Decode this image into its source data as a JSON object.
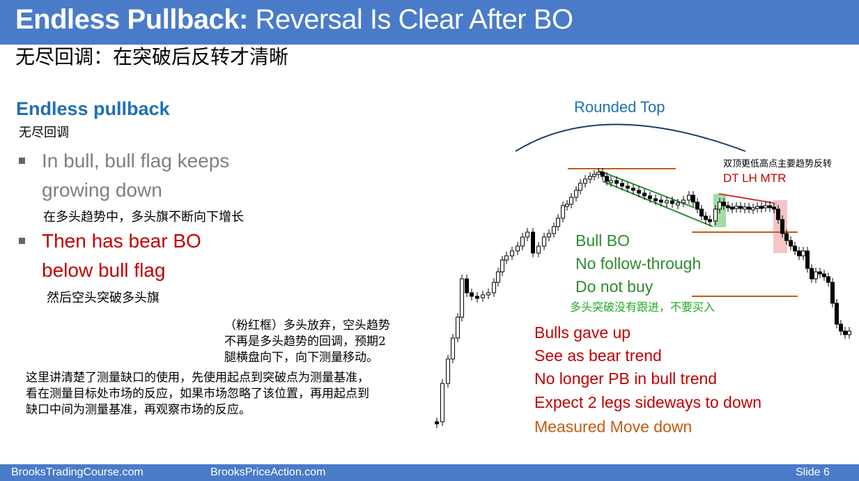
{
  "title": {
    "bold": "Endless Pullback:",
    "rest": " Reversal Is Clear After BO",
    "zh": "无尽回调：在突破后反转才清晰"
  },
  "left": {
    "heading": "Endless pullback",
    "heading_zh": "无尽回调",
    "bullet1_line1": "In bull, bull flag keeps",
    "bullet1_line2": "growing down",
    "bullet1_zh": "在多头趋势中，多头旗不断向下增长",
    "bullet2_line1": "Then has bear BO",
    "bullet2_line2": "below bull flag",
    "bullet2_zh": "然后空头突破多头旗"
  },
  "notes": {
    "pink_line1": "（粉红框）多头放弃，空头趋势",
    "pink_line2": "不再是多头趋势的回调，预期2",
    "pink_line3": "腿横盘向下，向下测量移动。",
    "mm_line1": "这里讲清楚了测量缺口的使用，先使用起点到突破点为测量基准，",
    "mm_line2": "看在测量目标处市场的反应，如果市场忽略了该位置，再用起点到",
    "mm_line3": "缺口中间为测量基准，再观察市场的反应。"
  },
  "chart_labels": {
    "rounded_top": "Rounded Top",
    "dt_zh": "双顶更低高点主要趋势反转",
    "dt": "DT LH MTR",
    "bull_bo": "Bull BO",
    "no_follow": "No follow-through",
    "do_not_buy": "Do not buy",
    "bull_zh": "多头突破没有跟进，不要买入",
    "bulls_gave_up": "Bulls gave up",
    "see_bear": "See as bear trend",
    "no_longer": "No longer PB in bull trend",
    "expect": "Expect 2 legs sideways to down",
    "measured": "Measured Move down"
  },
  "colors": {
    "title_bar": "#4a7bc8",
    "heading_blue": "#1f6fb4",
    "bear_red": "#c00000",
    "green_text": "#2e8b2e",
    "orange_line": "#c55a11",
    "channel_green": "#2e8b2e",
    "pink_box": "#f4b6b6"
  },
  "footer": {
    "left": "BrooksTradingCourse.com",
    "mid": "BrooksPriceAction.com",
    "slide": "Slide  6"
  }
}
